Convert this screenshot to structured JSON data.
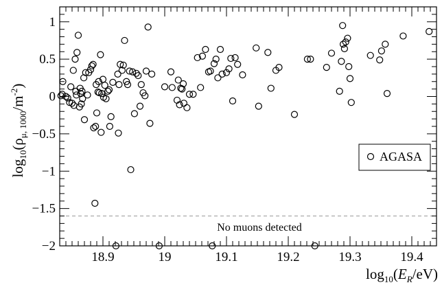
{
  "chart_data": {
    "type": "scatter",
    "xlabel": {
      "prefix": "log",
      "sub": "10",
      "open": "(",
      "var": "E",
      "var_sub": "R",
      "rest": "/eV)"
    },
    "ylabel": {
      "prefix": "log",
      "sub": "10",
      "open": "(ρ",
      "rho_sub": "μ, 1000",
      "mid": "/m",
      "sup": "-2",
      "close": ")"
    },
    "xlim": [
      18.83,
      19.44
    ],
    "ylim": [
      -2.0,
      1.2
    ],
    "x_ticks": [
      18.9,
      19.0,
      19.1,
      19.2,
      19.3,
      19.4
    ],
    "x_tick_labels": [
      "18.9",
      "19",
      "19.1",
      "19.2",
      "19.3",
      "19.4"
    ],
    "y_ticks": [
      -2,
      -1.5,
      -1,
      -0.5,
      0,
      0.5,
      1
    ],
    "y_tick_labels": [
      "−2",
      "−1.5",
      "−1",
      "−0.5",
      "0",
      "0.5",
      "1"
    ],
    "annotation": {
      "text": "No muons detected",
      "y": -1.6
    },
    "legend": {
      "label": "AGASA",
      "position": "right"
    },
    "series": [
      {
        "name": "AGASA",
        "points": [
          [
            18.832,
            0.01
          ],
          [
            18.834,
            0.03
          ],
          [
            18.835,
            0.2
          ],
          [
            18.84,
            0.0
          ],
          [
            18.843,
            -0.02
          ],
          [
            18.846,
            -0.08
          ],
          [
            18.848,
            0.13
          ],
          [
            18.85,
            -0.09
          ],
          [
            18.852,
            0.35
          ],
          [
            18.853,
            -0.12
          ],
          [
            18.855,
            0.5
          ],
          [
            18.856,
            0.07
          ],
          [
            18.857,
            0.02
          ],
          [
            18.858,
            0.59
          ],
          [
            18.86,
            0.82
          ],
          [
            18.862,
            -0.14
          ],
          [
            18.863,
            0.11
          ],
          [
            18.864,
            0.04
          ],
          [
            18.865,
            -0.1
          ],
          [
            18.866,
            0.07
          ],
          [
            18.867,
            -0.03
          ],
          [
            18.869,
            0.25
          ],
          [
            18.87,
            -0.31
          ],
          [
            18.872,
            0.32
          ],
          [
            18.875,
            0.02
          ],
          [
            18.877,
            0.32
          ],
          [
            18.88,
            0.36
          ],
          [
            18.882,
            0.41
          ],
          [
            18.884,
            0.43
          ],
          [
            18.885,
            -0.42
          ],
          [
            18.887,
            -1.43
          ],
          [
            18.888,
            -0.4
          ],
          [
            18.889,
            0.16
          ],
          [
            18.89,
            -0.22
          ],
          [
            18.892,
            0.06
          ],
          [
            18.893,
            0.2
          ],
          [
            18.894,
            0.05
          ],
          [
            18.896,
            0.56
          ],
          [
            18.897,
            -0.48
          ],
          [
            18.898,
            0.04
          ],
          [
            18.9,
            0.23
          ],
          [
            18.901,
            -0.01
          ],
          [
            18.903,
            0.15
          ],
          [
            18.905,
            -0.03
          ],
          [
            18.908,
            0.07
          ],
          [
            18.91,
            0.09
          ],
          [
            18.911,
            -0.4
          ],
          [
            18.913,
            -0.27
          ],
          [
            18.916,
            0.19
          ],
          [
            18.921,
            -2.0
          ],
          [
            18.924,
            0.3
          ],
          [
            18.925,
            -0.49
          ],
          [
            18.926,
            0.16
          ],
          [
            18.928,
            0.43
          ],
          [
            18.931,
            0.35
          ],
          [
            18.933,
            0.42
          ],
          [
            18.935,
            0.75
          ],
          [
            18.938,
            0.2
          ],
          [
            18.94,
            0.16
          ],
          [
            18.943,
            0.34
          ],
          [
            18.945,
            -0.98
          ],
          [
            18.948,
            0.33
          ],
          [
            18.951,
            -0.23
          ],
          [
            18.954,
            0.31
          ],
          [
            18.957,
            0.28
          ],
          [
            18.96,
            -0.13
          ],
          [
            18.962,
            0.16
          ],
          [
            18.965,
            0.05
          ],
          [
            18.968,
            0.01
          ],
          [
            18.97,
            0.34
          ],
          [
            18.973,
            0.93
          ],
          [
            18.976,
            -0.36
          ],
          [
            18.979,
            0.3
          ],
          [
            18.991,
            -2.0
          ],
          [
            19.0,
            0.13
          ],
          [
            19.01,
            0.33
          ],
          [
            19.012,
            0.12
          ],
          [
            19.02,
            -0.05
          ],
          [
            19.022,
            0.22
          ],
          [
            19.024,
            -0.11
          ],
          [
            19.026,
            0.11
          ],
          [
            19.028,
            0.1
          ],
          [
            19.03,
            0.17
          ],
          [
            19.031,
            -0.09
          ],
          [
            19.036,
            -0.15
          ],
          [
            19.04,
            0.03
          ],
          [
            19.046,
            0.03
          ],
          [
            19.053,
            0.52
          ],
          [
            19.058,
            0.12
          ],
          [
            19.061,
            0.54
          ],
          [
            19.066,
            0.63
          ],
          [
            19.071,
            0.33
          ],
          [
            19.074,
            0.34
          ],
          [
            19.077,
            -2.0
          ],
          [
            19.08,
            0.44
          ],
          [
            19.083,
            0.5
          ],
          [
            19.086,
            0.25
          ],
          [
            19.09,
            0.63
          ],
          [
            19.093,
            0.3
          ],
          [
            19.1,
            0.32
          ],
          [
            19.104,
            0.37
          ],
          [
            19.107,
            0.51
          ],
          [
            19.11,
            -0.06
          ],
          [
            19.114,
            0.52
          ],
          [
            19.118,
            0.43
          ],
          [
            19.126,
            0.29
          ],
          [
            19.148,
            0.65
          ],
          [
            19.152,
            -0.13
          ],
          [
            19.167,
            0.59
          ],
          [
            19.172,
            0.11
          ],
          [
            19.18,
            0.35
          ],
          [
            19.185,
            0.39
          ],
          [
            19.21,
            -0.24
          ],
          [
            19.231,
            0.5
          ],
          [
            19.236,
            0.5
          ],
          [
            19.243,
            -2.0
          ],
          [
            19.262,
            0.39
          ],
          [
            19.27,
            0.58
          ],
          [
            19.283,
            0.07
          ],
          [
            19.286,
            0.47
          ],
          [
            19.288,
            0.95
          ],
          [
            19.289,
            0.7
          ],
          [
            19.291,
            0.64
          ],
          [
            19.293,
            0.73
          ],
          [
            19.296,
            0.78
          ],
          [
            19.298,
            0.4
          ],
          [
            19.3,
            0.24
          ],
          [
            19.302,
            -0.08
          ],
          [
            19.333,
            0.55
          ],
          [
            19.348,
            0.49
          ],
          [
            19.351,
            0.61
          ],
          [
            19.357,
            0.7
          ],
          [
            19.36,
            0.04
          ],
          [
            19.386,
            0.81
          ],
          [
            19.428,
            0.87
          ]
        ]
      }
    ]
  }
}
